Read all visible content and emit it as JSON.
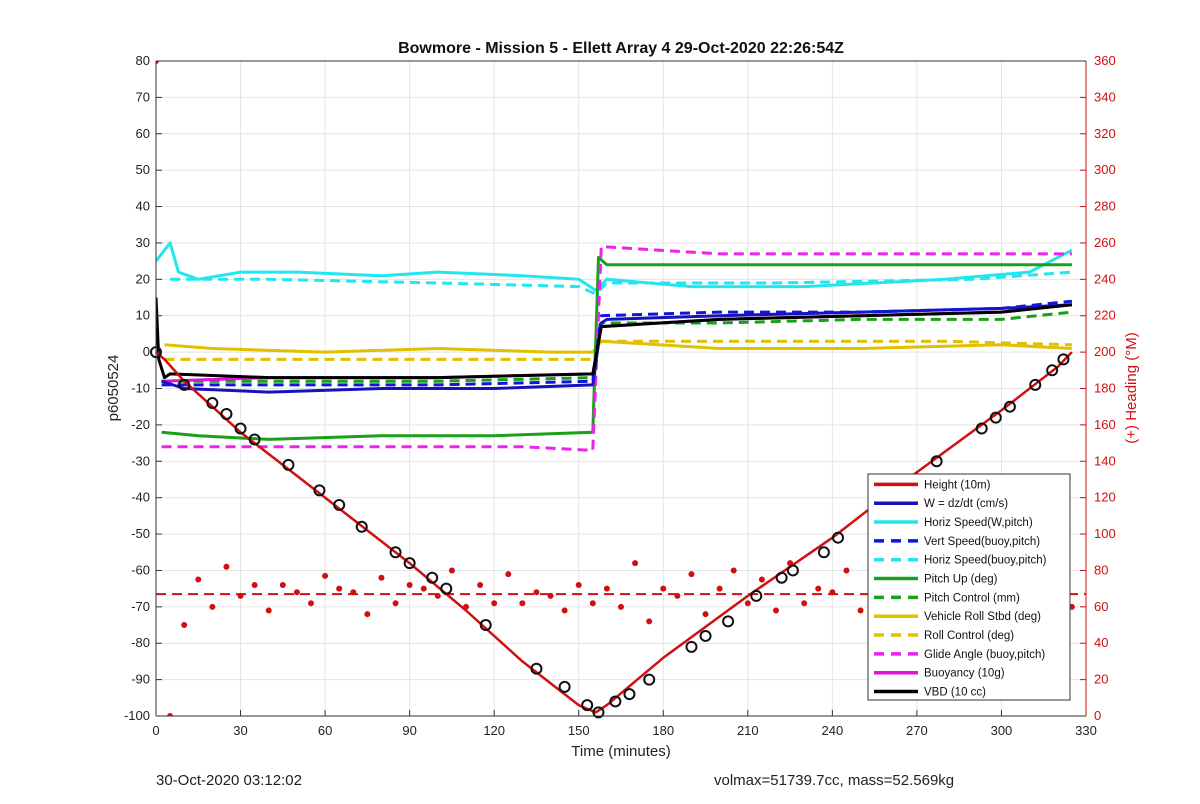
{
  "chart_data": {
    "type": "line",
    "title": "Bowmore - Mission 5 - Ellett Array 4 29-Oct-2020 22:26:54Z",
    "xlabel": "Time (minutes)",
    "ylabel": "p6050524",
    "y2label": "(+) Heading (°M)",
    "xlim": [
      0,
      330
    ],
    "ylim": [
      -100,
      80
    ],
    "y2lim": [
      0,
      360
    ],
    "xticks": [
      "0",
      "30",
      "60",
      "90",
      "120",
      "150",
      "180",
      "210",
      "240",
      "270",
      "300",
      "330"
    ],
    "yticks": [
      "-100",
      "-90",
      "-80",
      "-70",
      "-60",
      "-50",
      "-40",
      "-30",
      "-20",
      "-10",
      "0",
      "10",
      "20",
      "30",
      "40",
      "50",
      "60",
      "70",
      "80"
    ],
    "y2ticks": [
      "0",
      "20",
      "40",
      "60",
      "80",
      "100",
      "120",
      "140",
      "160",
      "180",
      "200",
      "220",
      "240",
      "260",
      "280",
      "300",
      "320",
      "340",
      "360"
    ],
    "grid": true,
    "legend_position": "bottom-right",
    "axis_colors": {
      "left": "#333333",
      "right": "#d01010"
    },
    "series": [
      {
        "name": "Height (10m)",
        "color": "#d01010",
        "style": "solid",
        "x": [
          0,
          3,
          10,
          20,
          30,
          50,
          70,
          90,
          110,
          130,
          150,
          156,
          160,
          180,
          210,
          240,
          270,
          300,
          320,
          325
        ],
        "y": [
          0,
          -2,
          -8,
          -15,
          -22,
          -34,
          -46,
          -58,
          -71,
          -85,
          -97,
          -99,
          -97,
          -84,
          -67,
          -51,
          -33,
          -16,
          -4,
          0
        ]
      },
      {
        "name": "W = dz/dt (cm/s)",
        "color": "#1414b8",
        "style": "solid",
        "x": [
          2,
          10,
          40,
          80,
          120,
          155,
          158,
          160,
          200,
          250,
          300,
          325
        ],
        "y": [
          -8,
          -10,
          -11,
          -10,
          -10,
          -9,
          8,
          9,
          10,
          11,
          12,
          13
        ]
      },
      {
        "name": "Horiz Speed(W,pitch)",
        "color": "#22e6ee",
        "style": "solid",
        "x": [
          0,
          5,
          8,
          15,
          30,
          50,
          80,
          100,
          130,
          150,
          156,
          160,
          190,
          230,
          280,
          310,
          325
        ],
        "y": [
          25,
          30,
          22,
          20,
          22,
          22,
          21,
          22,
          21,
          20,
          17,
          20,
          18,
          18,
          20,
          22,
          28
        ]
      },
      {
        "name": "Vert Speed(buoy,pitch)",
        "color": "#1414e0",
        "style": "dash",
        "x": [
          2,
          40,
          100,
          155,
          158,
          200,
          250,
          300,
          325
        ],
        "y": [
          -9,
          -9,
          -9,
          -8,
          10,
          11,
          11,
          12,
          14
        ]
      },
      {
        "name": "Horiz Speed(buoy,pitch)",
        "color": "#22e6ee",
        "style": "dash",
        "x": [
          5,
          40,
          100,
          150,
          156,
          160,
          220,
          290,
          325
        ],
        "y": [
          20,
          20,
          19,
          18,
          16,
          19,
          19,
          20,
          22
        ]
      },
      {
        "name": "Pitch Up (deg)",
        "color": "#18a018",
        "style": "solid",
        "x": [
          2,
          15,
          40,
          80,
          120,
          155,
          157,
          160,
          200,
          250,
          300,
          325
        ],
        "y": [
          -22,
          -23,
          -24,
          -23,
          -23,
          -22,
          26,
          24,
          24,
          24,
          24,
          24
        ]
      },
      {
        "name": "Pitch Control (mm)",
        "color": "#18a018",
        "style": "dash",
        "x": [
          2,
          40,
          100,
          155,
          158,
          200,
          250,
          300,
          325
        ],
        "y": [
          -8,
          -8,
          -8,
          -7,
          8,
          8,
          9,
          9,
          11
        ]
      },
      {
        "name": "Vehicle Roll Stbd (deg)",
        "color": "#e0c000",
        "style": "solid",
        "x": [
          3,
          20,
          60,
          100,
          140,
          155,
          158,
          200,
          250,
          300,
          325
        ],
        "y": [
          2,
          1,
          0,
          1,
          0,
          0,
          3,
          1,
          1,
          2,
          1
        ]
      },
      {
        "name": "Roll Control (deg)",
        "color": "#e0c000",
        "style": "dash",
        "x": [
          3,
          60,
          120,
          155,
          158,
          220,
          280,
          325
        ],
        "y": [
          -2,
          -2,
          -2,
          -2,
          3,
          3,
          3,
          2
        ]
      },
      {
        "name": "Glide Angle (buoy,pitch)",
        "color": "#ee22ee",
        "style": "dash",
        "x": [
          2,
          30,
          80,
          130,
          155,
          158,
          200,
          250,
          300,
          325
        ],
        "y": [
          -26,
          -26,
          -26,
          -26,
          -27,
          29,
          27,
          27,
          27,
          27
        ]
      },
      {
        "name": "Buoyancy (10g)",
        "color": "#e010e0",
        "style": "solid",
        "x": [
          2,
          40,
          100,
          155,
          158,
          200,
          250,
          300,
          325
        ],
        "y": [
          -8,
          -7,
          -7,
          -6,
          7,
          9,
          10,
          11,
          13
        ]
      },
      {
        "name": "VBD (10 cc)",
        "color": "#000000",
        "style": "solid",
        "x": [
          0,
          1,
          3,
          5,
          40,
          100,
          155,
          158,
          200,
          250,
          300,
          325
        ],
        "y": [
          15,
          -2,
          -7,
          -6,
          -7,
          -7,
          -6,
          7,
          9,
          10,
          11,
          13
        ]
      }
    ],
    "heading": {
      "name": "(+) Heading (°M)",
      "color": "#d01010",
      "mean": 67,
      "x": [
        0,
        5,
        10,
        15,
        20,
        25,
        30,
        35,
        40,
        45,
        50,
        55,
        60,
        65,
        70,
        75,
        80,
        85,
        90,
        95,
        100,
        105,
        110,
        115,
        120,
        125,
        130,
        135,
        140,
        145,
        150,
        155,
        160,
        165,
        170,
        175,
        180,
        185,
        190,
        195,
        200,
        205,
        210,
        215,
        220,
        225,
        230,
        235,
        240,
        245,
        250,
        255,
        260,
        265,
        270,
        275,
        280,
        285,
        290,
        295,
        300,
        305,
        310,
        315,
        320,
        325
      ],
      "y": [
        360,
        0,
        50,
        75,
        60,
        82,
        66,
        72,
        58,
        72,
        68,
        62,
        77,
        70,
        68,
        56,
        76,
        62,
        72,
        70,
        66,
        80,
        60,
        72,
        62,
        78,
        62,
        68,
        66,
        58,
        72,
        62,
        70,
        60,
        84,
        52,
        70,
        66,
        78,
        56,
        70,
        80,
        62,
        75,
        58,
        84,
        62,
        70,
        68,
        80,
        58,
        72,
        66,
        74,
        60,
        78,
        62,
        70,
        66,
        78,
        58,
        74,
        60,
        70,
        66,
        60
      ]
    },
    "markers": {
      "name": "dive markers",
      "x": [
        0,
        10,
        20,
        25,
        30,
        35,
        47,
        58,
        65,
        73,
        85,
        90,
        98,
        103,
        117,
        135,
        145,
        153,
        157,
        163,
        168,
        175,
        190,
        195,
        203,
        213,
        222,
        226,
        237,
        242,
        255,
        263,
        277,
        293,
        298,
        303,
        312,
        318,
        322
      ],
      "y": [
        0,
        -9,
        -14,
        -17,
        -21,
        -24,
        -31,
        -38,
        -42,
        -48,
        -55,
        -58,
        -62,
        -65,
        -75,
        -87,
        -92,
        -97,
        -99,
        -96,
        -94,
        -90,
        -81,
        -78,
        -74,
        -67,
        -62,
        -60,
        -55,
        -51,
        -44,
        -39,
        -30,
        -21,
        -18,
        -15,
        -9,
        -5,
        -2
      ]
    }
  },
  "footer": {
    "left": "30-Oct-2020 03:12:02",
    "right": "volmax=51739.7cc, mass=52.569kg"
  }
}
